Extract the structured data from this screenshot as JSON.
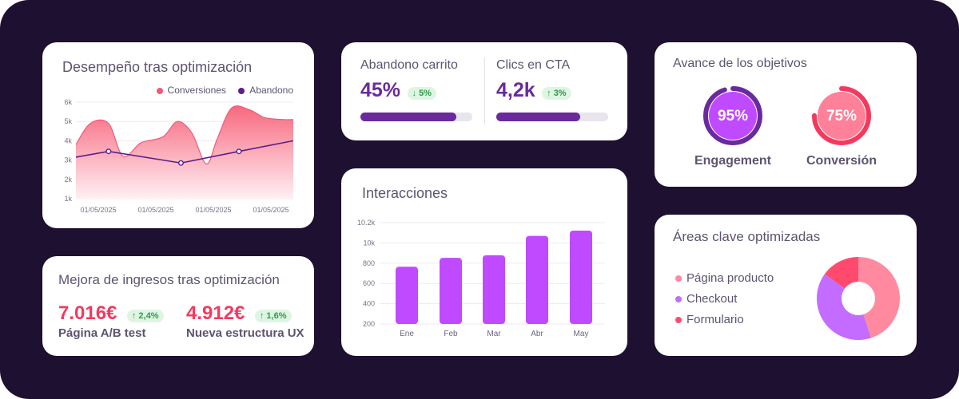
{
  "performance": {
    "title": "Desempeño tras optimización",
    "legend": [
      {
        "label": "Conversiones",
        "color": "#f05a78"
      },
      {
        "label": "Abandono",
        "color": "#5b1e8c"
      }
    ],
    "chart_data": {
      "type": "area",
      "title": "",
      "ylim": [
        1,
        6
      ],
      "yticks": [
        "6k",
        "5k",
        "4k",
        "3k",
        "2k",
        "1k"
      ],
      "xticks": [
        "01/05/2025",
        "01/05/2025",
        "01/05/2025",
        "01/05/2025"
      ],
      "series": [
        {
          "name": "Conversiones",
          "type": "area",
          "x": [
            0,
            0.4,
            0.9,
            1.3,
            1.8,
            2.4,
            2.8,
            3.2,
            3.6,
            3.9,
            4.3,
            4.8,
            5.2,
            5.7,
            6.0
          ],
          "y": [
            3.8,
            4.9,
            4.9,
            3.2,
            3.9,
            4.2,
            5.0,
            4.4,
            2.8,
            4.1,
            5.7,
            5.6,
            5.2,
            5.1,
            5.1
          ]
        },
        {
          "name": "Abandono",
          "type": "line",
          "x": [
            0,
            0.9,
            2.9,
            4.5,
            6.0
          ],
          "y": [
            3.15,
            3.45,
            2.85,
            3.45,
            4.0
          ],
          "markers_at": [
            0.9,
            2.9,
            4.5
          ]
        }
      ]
    }
  },
  "revenue": {
    "title": "Mejora de ingresos tras optimización",
    "items": [
      {
        "value": "7.016€",
        "change": "2,4%",
        "label": "Página A/B test"
      },
      {
        "value": "4.912€",
        "change": "1,6%",
        "label": "Nueva estructura UX"
      }
    ]
  },
  "kpis": [
    {
      "title": "Abandono carrito",
      "value": "45%",
      "change": "5%",
      "direction": "down",
      "progress": 0.86
    },
    {
      "title": "Clics en CTA",
      "value": "4,2k",
      "change": "3%",
      "direction": "up",
      "progress": 0.75
    }
  ],
  "interactions": {
    "title": "Interacciones",
    "chart_data": {
      "type": "bar",
      "title": "",
      "categories": [
        "Ene",
        "Feb",
        "Mar",
        "Abr",
        "May"
      ],
      "values": [
        750,
        850,
        880,
        1100,
        1160
      ],
      "yticks": [
        "10.2k",
        "10k",
        "800",
        "600",
        "400",
        "200"
      ],
      "color": "#c04aff"
    }
  },
  "goals": {
    "title": "Avance de los objetivos",
    "items": [
      {
        "value": "95%",
        "label": "Engagement",
        "progress": 0.95,
        "ring": "#6a2a9e",
        "fill": "#c04aff"
      },
      {
        "value": "75%",
        "label": "Conversión",
        "progress": 0.75,
        "ring": "#f5395e",
        "fill": "#ff8099"
      }
    ]
  },
  "areas": {
    "title": "Áreas clave optimizadas",
    "chart_data": {
      "type": "pie",
      "title": "",
      "slices": [
        {
          "label": "Página producto",
          "value": 45,
          "color": "#ff8aa0"
        },
        {
          "label": "Checkout",
          "value": 40,
          "color": "#c46cff"
        },
        {
          "label": "Formulario",
          "value": 15,
          "color": "#ff4a6e"
        }
      ]
    }
  }
}
